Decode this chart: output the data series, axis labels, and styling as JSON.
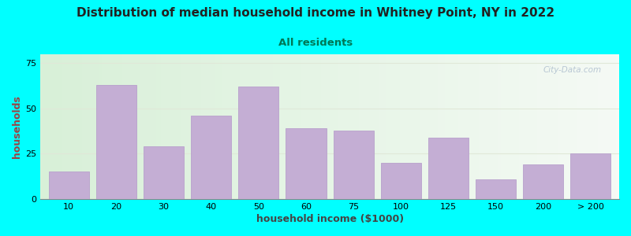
{
  "title": "Distribution of median household income in Whitney Point, NY in 2022",
  "subtitle": "All residents",
  "xlabel": "household income ($1000)",
  "ylabel": "households",
  "background_outer": "#00FFFF",
  "background_inner": "#f0f8ee",
  "bar_color": "#c4aed4",
  "bar_edge_color": "#b8a0cc",
  "bar_categories": [
    "10",
    "20",
    "30",
    "40",
    "50",
    "60",
    "75",
    "100",
    "125",
    "150",
    "200",
    "> 200"
  ],
  "bar_values": [
    15,
    63,
    29,
    46,
    62,
    39,
    38,
    20,
    34,
    11,
    19,
    25
  ],
  "ylim": [
    0,
    80
  ],
  "yticks": [
    0,
    25,
    50,
    75
  ],
  "title_fontsize": 11,
  "subtitle_fontsize": 9.5,
  "axis_label_fontsize": 9,
  "tick_fontsize": 8,
  "title_color": "#222222",
  "subtitle_color": "#007755",
  "ylabel_color": "#994444",
  "xlabel_color": "#444444",
  "watermark_text": "City-Data.com",
  "grid_color": "#e0e8d8"
}
